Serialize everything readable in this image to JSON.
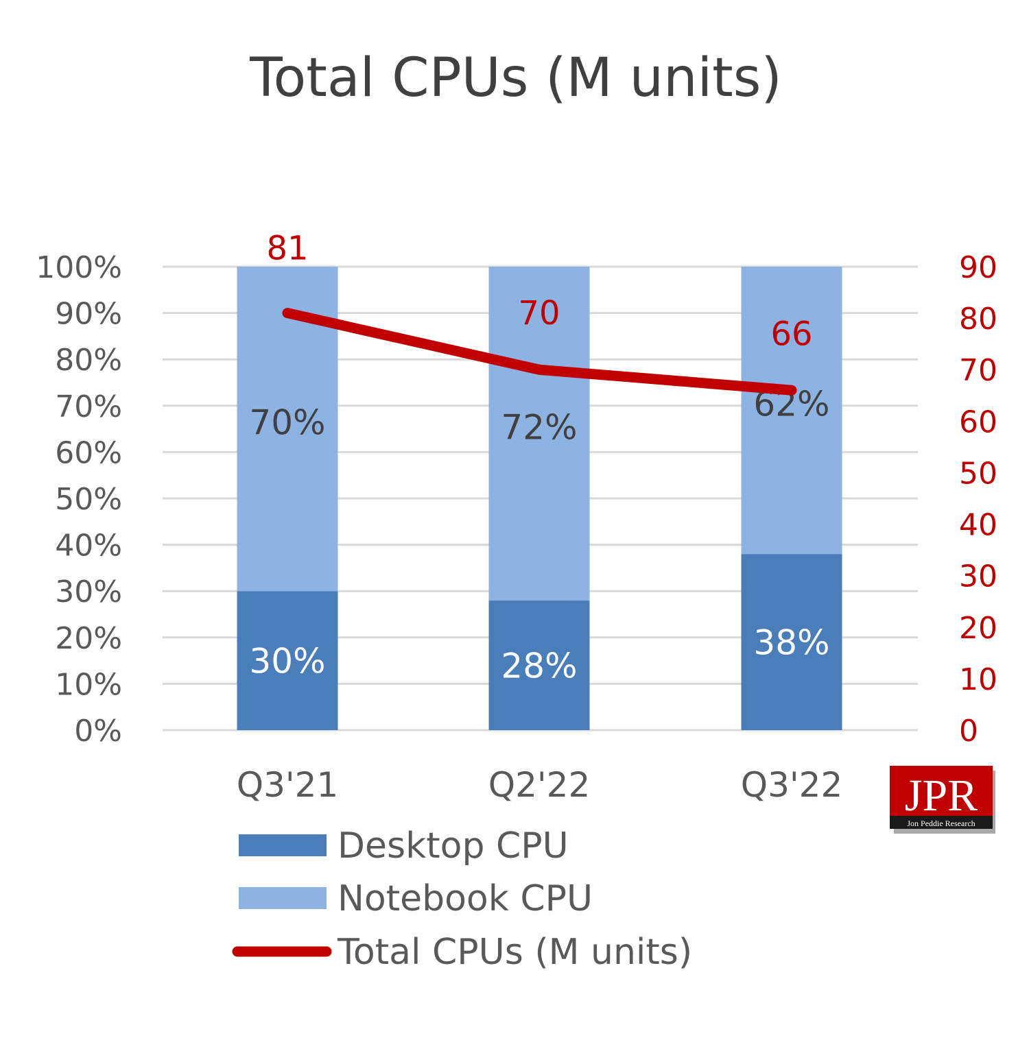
{
  "chart_data": {
    "type": "bar",
    "title": "Total CPUs (M units)",
    "categories": [
      "Q3'21",
      "Q2'22",
      "Q3'22"
    ],
    "series": [
      {
        "name": "Desktop CPU",
        "kind": "stacked-bar",
        "axis": "left",
        "values": [
          30,
          28,
          38
        ],
        "labels": [
          "30%",
          "28%",
          "38%"
        ],
        "color": "#4a7ebb",
        "label_color": "#ffffff"
      },
      {
        "name": "Notebook CPU",
        "kind": "stacked-bar",
        "axis": "left",
        "values": [
          70,
          72,
          62
        ],
        "labels": [
          "70%",
          "72%",
          "62%"
        ],
        "color": "#8db3e2",
        "label_color": "#404040"
      },
      {
        "name": "Total CPUs (M units)",
        "kind": "line",
        "axis": "right",
        "values": [
          81,
          70,
          66
        ],
        "labels": [
          "81",
          "70",
          "66"
        ],
        "color": "#c00000"
      }
    ],
    "y_left": {
      "range": [
        0,
        100
      ],
      "ticks": [
        "0%",
        "10%",
        "20%",
        "30%",
        "40%",
        "50%",
        "60%",
        "70%",
        "80%",
        "90%",
        "100%"
      ]
    },
    "y_right": {
      "range": [
        0,
        90
      ],
      "ticks": [
        "0",
        "10",
        "20",
        "30",
        "40",
        "50",
        "60",
        "70",
        "80",
        "90"
      ],
      "color": "#c00000"
    },
    "grid": true,
    "legend_position": "bottom",
    "logo": {
      "text": "JPR",
      "subtext": "Jon Peddie Research",
      "color": "#c00000"
    }
  }
}
